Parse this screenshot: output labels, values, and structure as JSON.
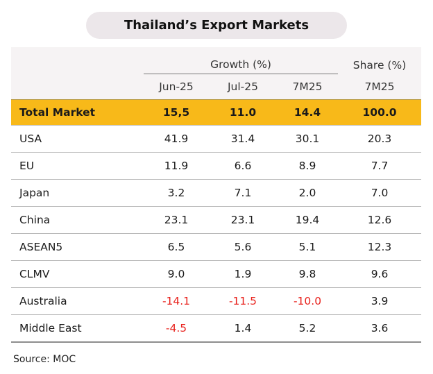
{
  "title": "Thailand’s Export Markets",
  "header": {
    "growth_label": "Growth (%)",
    "share_label": "Share (%)",
    "cols": [
      "Jun-25",
      "Jul-25",
      "7M25",
      "7M25"
    ]
  },
  "total": {
    "name": "Total Market",
    "values": [
      "15,5",
      "11.0",
      "14.4",
      "100.0"
    ]
  },
  "rows": [
    {
      "name": "USA",
      "values": [
        "41.9",
        "31.4",
        "30.1",
        "20.3"
      ]
    },
    {
      "name": "EU",
      "values": [
        "11.9",
        "6.6",
        "8.9",
        "7.7"
      ]
    },
    {
      "name": "Japan",
      "values": [
        "3.2",
        "7.1",
        "2.0",
        "7.0"
      ]
    },
    {
      "name": "China",
      "values": [
        "23.1",
        "23.1",
        "19.4",
        "12.6"
      ]
    },
    {
      "name": "ASEAN5",
      "values": [
        "6.5",
        "5.6",
        "5.1",
        "12.3"
      ]
    },
    {
      "name": "CLMV",
      "values": [
        "9.0",
        "1.9",
        "9.8",
        "9.6"
      ]
    },
    {
      "name": "Australia",
      "values": [
        "-14.1",
        "-11.5",
        "-10.0",
        "3.9"
      ]
    },
    {
      "name": "Middle East",
      "values": [
        "-4.5",
        "1.4",
        "5.2",
        "3.6"
      ]
    }
  ],
  "colors": {
    "highlight": "#f8b919",
    "negative": "#e8211c",
    "header_bg": "#f6f3f4",
    "title_bg": "#ece7ea"
  },
  "source": "Source: MOC"
}
